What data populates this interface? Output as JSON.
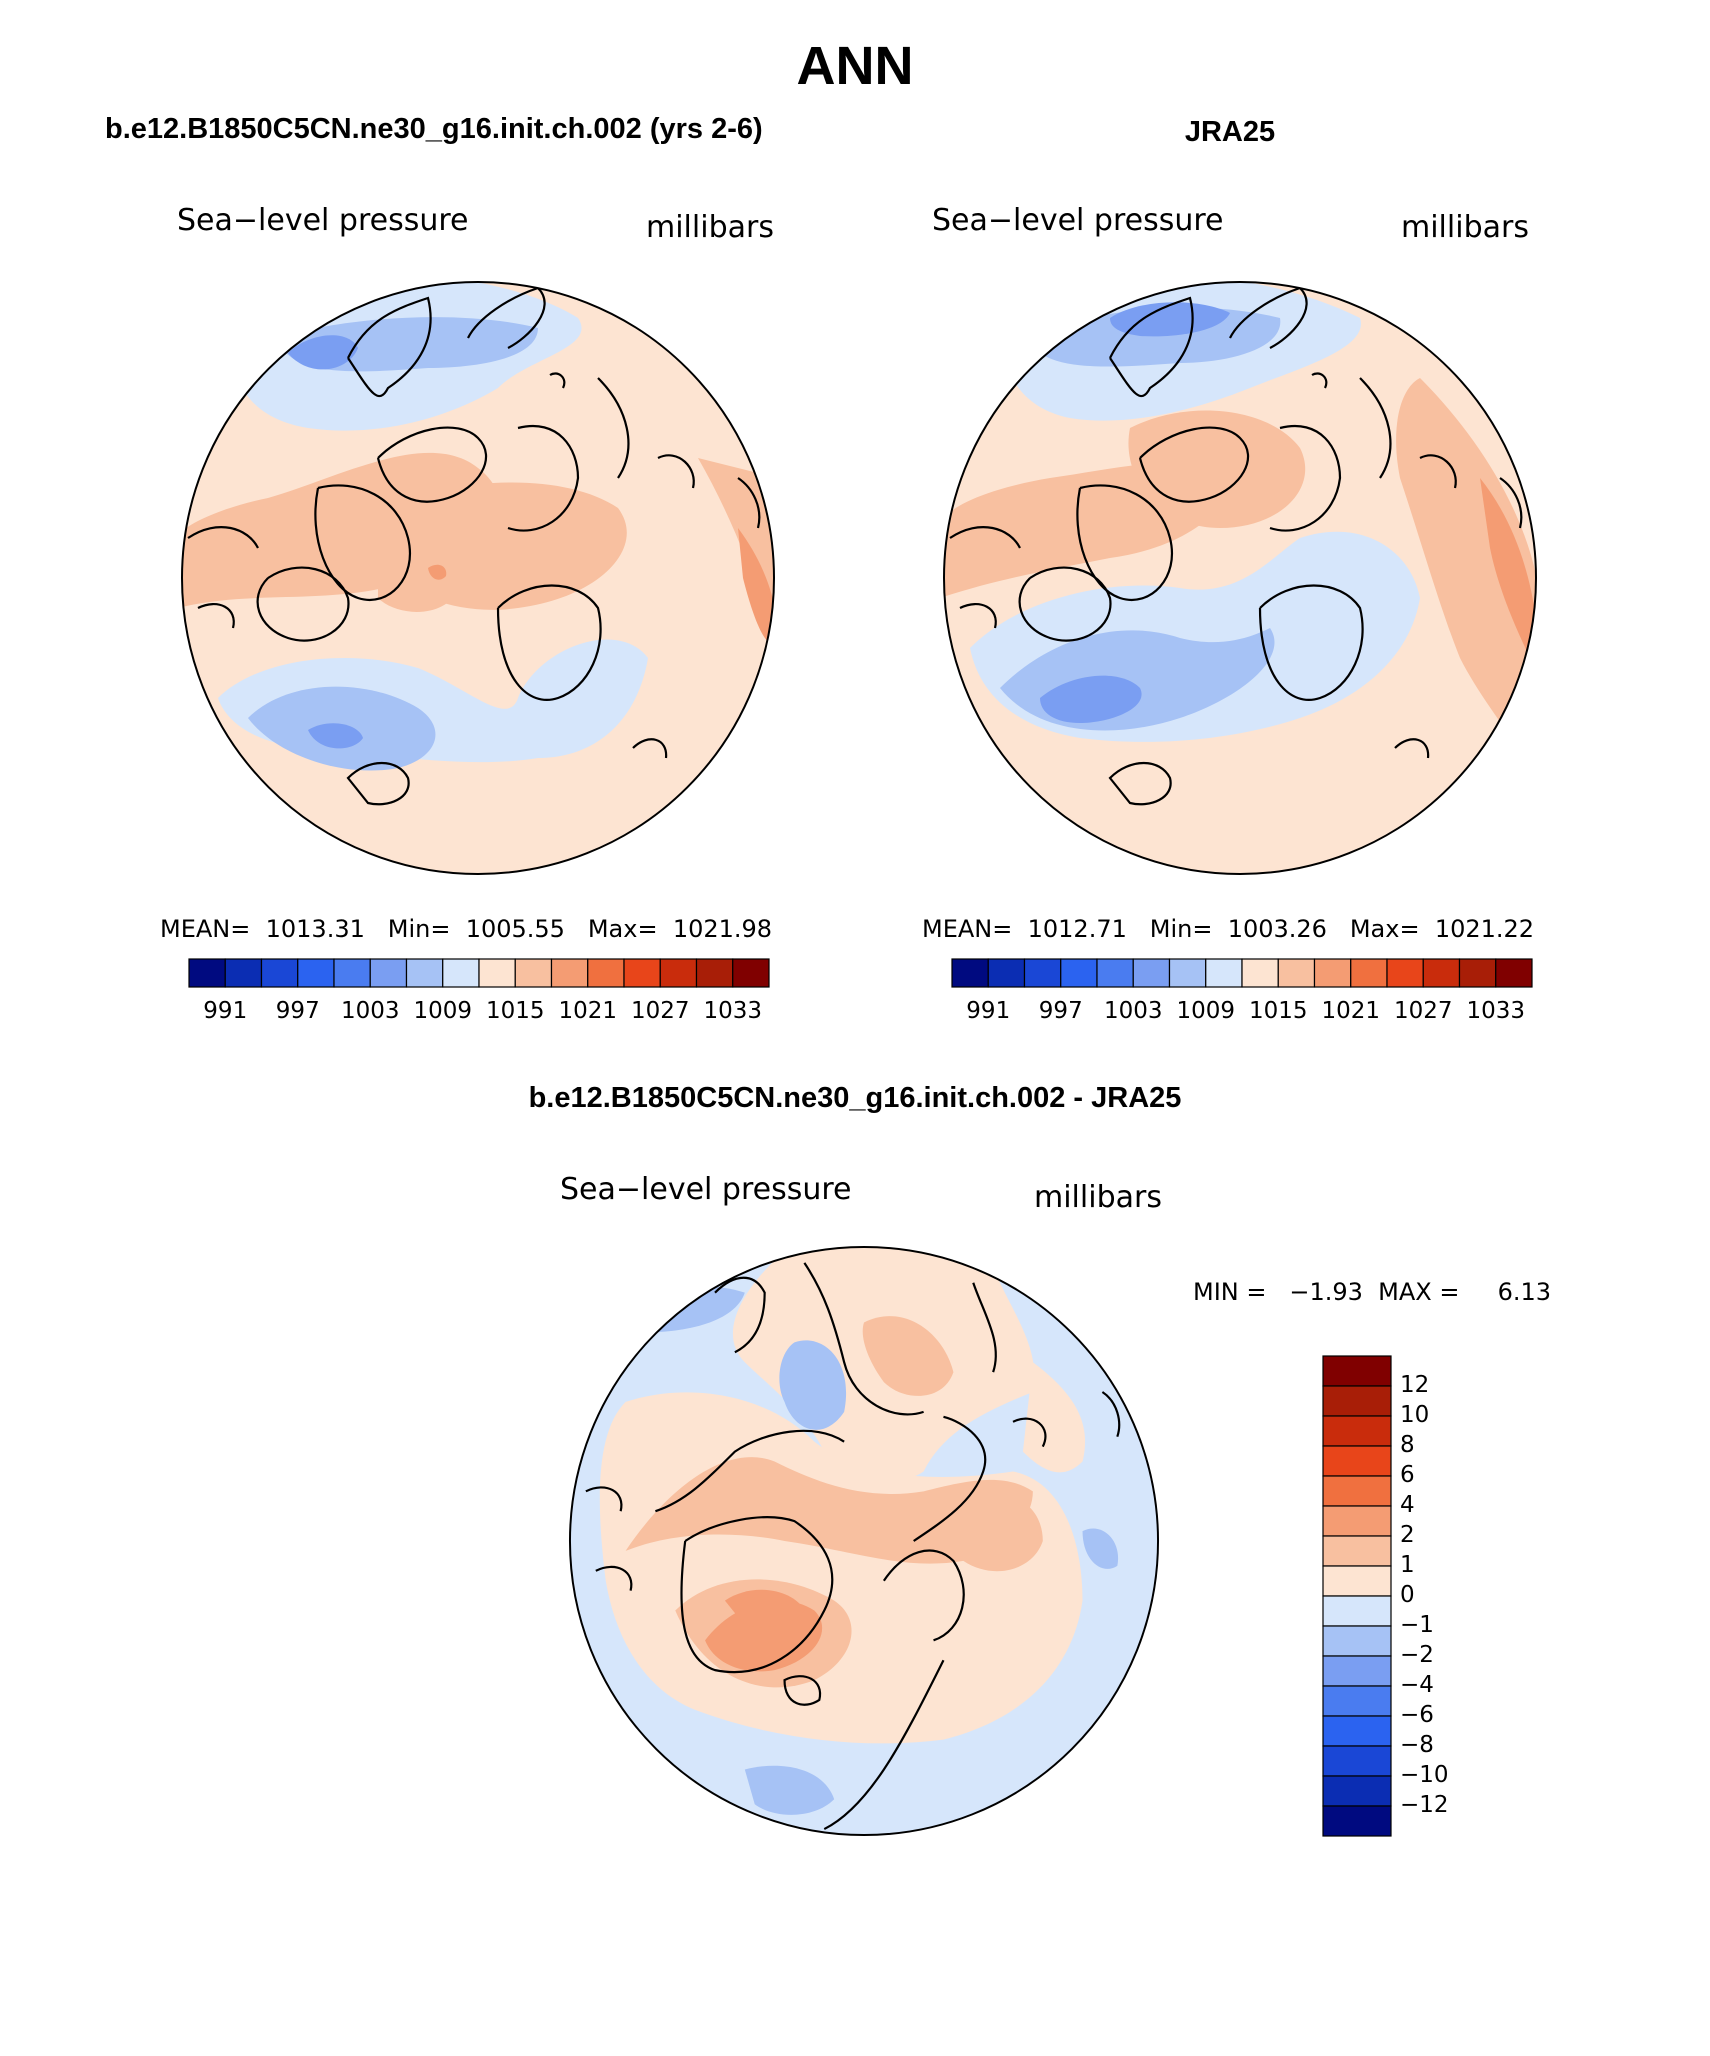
{
  "figure": {
    "title": "ANN"
  },
  "panels": [
    {
      "id": "model",
      "header": "b.e12.B1850C5CN.ne30_g16.init.ch.002 (yrs 2-6)",
      "left_label": "Sea−level pressure",
      "right_label": "millibars",
      "stats": "MEAN=  1013.31   Min=  1005.55   Max=  1021.98",
      "colorbar_ticks": [
        "991",
        "997",
        "1003",
        "1009",
        "1015",
        "1021",
        "1027",
        "1033"
      ]
    },
    {
      "id": "obs",
      "header": "JRA25",
      "left_label": "Sea−level pressure",
      "right_label": "millibars",
      "stats": "MEAN=  1012.71   Min=  1003.26   Max=  1021.22",
      "colorbar_ticks": [
        "991",
        "997",
        "1003",
        "1009",
        "1015",
        "1021",
        "1027",
        "1033"
      ]
    }
  ],
  "diff_panel": {
    "header": "b.e12.B1850C5CN.ne30_g16.init.ch.002 - JRA25",
    "left_label": "Sea−level pressure",
    "right_label": "millibars",
    "minmax": "MIN =   −1.93  MAX =     6.13",
    "colorbar_ticks": [
      "12",
      "10",
      "8",
      "6",
      "4",
      "2",
      "1",
      "0",
      "−1",
      "−2",
      "−4",
      "−6",
      "−8",
      "−10",
      "−12"
    ]
  },
  "chart_data": {
    "type": "heatmap",
    "projection": "north polar stereographic",
    "variable": "Sea-level pressure",
    "units": "millibars",
    "panels": [
      {
        "name": "b.e12.B1850C5CN.ne30_g16.init.ch.002 (yrs 2-6)",
        "mean": 1013.31,
        "min": 1005.55,
        "max": 1021.98,
        "contour_levels": [
          991,
          994,
          997,
          1000,
          1003,
          1006,
          1009,
          1012,
          1015,
          1018,
          1021,
          1024,
          1027,
          1030,
          1033
        ]
      },
      {
        "name": "JRA25",
        "mean": 1012.71,
        "min": 1003.26,
        "max": 1021.22,
        "contour_levels": [
          991,
          994,
          997,
          1000,
          1003,
          1006,
          1009,
          1012,
          1015,
          1018,
          1021,
          1024,
          1027,
          1030,
          1033
        ]
      },
      {
        "name": "b.e12.B1850C5CN.ne30_g16.init.ch.002 - JRA25",
        "min": -1.93,
        "max": 6.13,
        "contour_levels": [
          -12,
          -10,
          -8,
          -6,
          -4,
          -2,
          -1,
          0,
          1,
          2,
          4,
          6,
          8,
          10,
          12
        ]
      }
    ],
    "colors": {
      "full_field": [
        "#000a80",
        "#0b2db3",
        "#1a47d6",
        "#2b63f0",
        "#4a7cf0",
        "#7a9ef2",
        "#a6c2f5",
        "#d6e6fb",
        "#fde4d2",
        "#f8c0a0",
        "#f49c73",
        "#f0703f",
        "#e8451a",
        "#c92c0c",
        "#a81e07",
        "#800000"
      ],
      "difference": [
        "#000a80",
        "#0b2db3",
        "#1a47d6",
        "#2b63f0",
        "#4a7cf0",
        "#7a9ef2",
        "#a6c2f5",
        "#d6e6fb",
        "#fde4d2",
        "#f8c0a0",
        "#f49c73",
        "#f0703f",
        "#e8451a",
        "#c92c0c",
        "#a81e07",
        "#800000"
      ]
    }
  }
}
